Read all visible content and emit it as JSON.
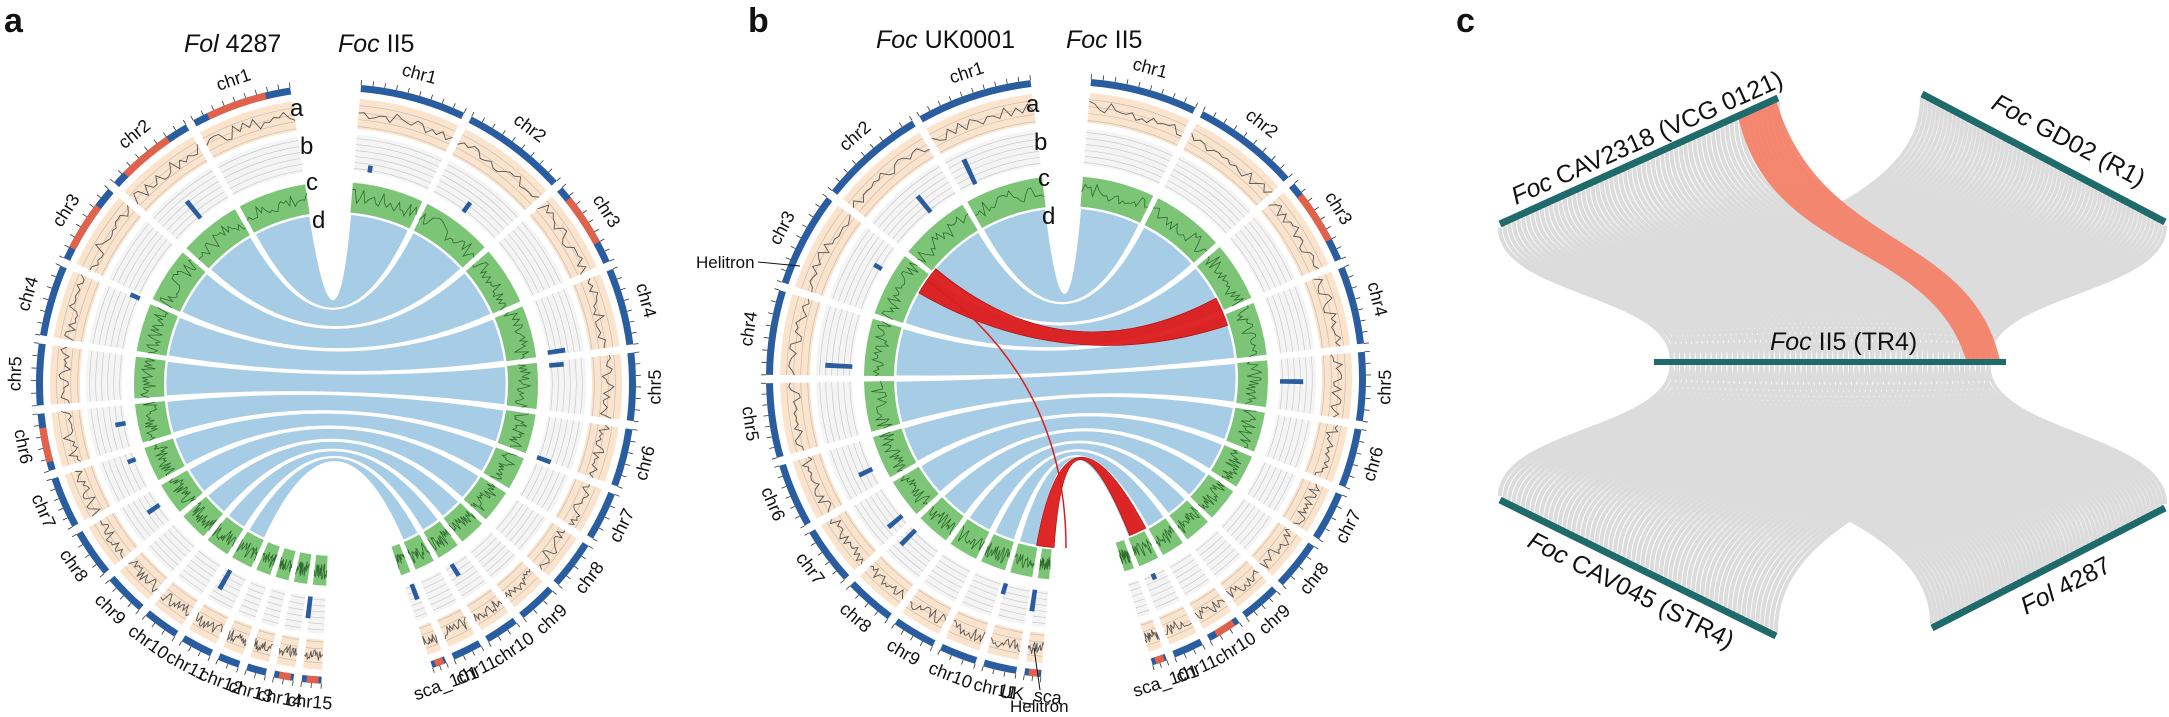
{
  "panel_a": {
    "letter": "a",
    "left_genome": {
      "italic": "Fol",
      "rest": " 4287"
    },
    "right_genome": {
      "italic": "Foc",
      "rest": " II5"
    },
    "track_letters": [
      "a",
      "b",
      "c",
      "d"
    ],
    "right_chromosomes": [
      "chr1",
      "chr2",
      "chr3",
      "chr4",
      "chr5",
      "chr6",
      "chr7",
      "chr8",
      "chr9",
      "chr10",
      "chr11",
      "sca_101"
    ],
    "left_chromosomes": [
      "chr15",
      "chr14",
      "chr13",
      "chr12",
      "chr11",
      "chr10",
      "chr9",
      "chr8",
      "chr7",
      "chr6",
      "chr5",
      "chr4",
      "chr3",
      "chr2",
      "chr1"
    ]
  },
  "panel_b": {
    "letter": "b",
    "left_genome": {
      "italic": "Foc",
      "rest": " UK0001"
    },
    "right_genome": {
      "italic": "Foc",
      "rest": " II5"
    },
    "track_letters": [
      "a",
      "b",
      "c",
      "d"
    ],
    "right_chromosomes": [
      "chr1",
      "chr2",
      "chr3",
      "chr4",
      "chr5",
      "chr6",
      "chr7",
      "chr8",
      "chr9",
      "chr10",
      "chr11",
      "sca_101"
    ],
    "left_chromosomes": [
      "UK_sca",
      "chr11",
      "chr10",
      "chr9",
      "chr8",
      "chr7",
      "chr6",
      "chr5",
      "chr4",
      "chr3",
      "chr2",
      "chr1"
    ],
    "callouts": [
      "Helitron",
      "Helitron"
    ]
  },
  "panel_c": {
    "letter": "c",
    "genomes": [
      {
        "italic": "Foc",
        "rest": " CAV2318 (VCG 0121)"
      },
      {
        "italic": "Foc",
        "rest": " GD02 (R1)"
      },
      {
        "italic": "Foc",
        "rest": " II5 (TR4)"
      },
      {
        "italic": "Foc",
        "rest": " CAV045 (STR4)"
      },
      {
        "italic": "Fol",
        "rest": " 4287"
      }
    ]
  },
  "colors": {
    "chromosome_blue": "#2a5d9f",
    "chromosome_red": "#e2614a",
    "gc_peach": "#fbe3cc",
    "density_green": "#7cc576",
    "link_blue": "#a7cde6",
    "link_red": "#dd1c1c",
    "synteny_grey": "#d9d9d9",
    "synteny_highlight": "#f47c62",
    "genome_bar": "#1f6b6b"
  }
}
